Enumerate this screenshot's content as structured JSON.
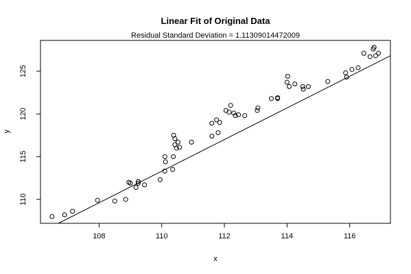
{
  "chart_data": {
    "type": "scatter",
    "title": "Linear Fit of Original Data",
    "subtitle": "Residual Standard Deviation =  1.11309014472009",
    "xlabel": "x",
    "ylabel": "y",
    "xlim": [
      106.13,
      117.3
    ],
    "ylim": [
      107.2,
      128.6
    ],
    "xticks": [
      "108",
      "110",
      "112",
      "114",
      "116"
    ],
    "yticks": [
      "110",
      "115",
      "120",
      "125"
    ],
    "fit_line": {
      "intercept": -90.2,
      "slope": 1.85
    },
    "points": [
      [
        106.5,
        108.0
      ],
      [
        106.9,
        108.2
      ],
      [
        107.15,
        108.6
      ],
      [
        107.95,
        109.9
      ],
      [
        108.5,
        109.8
      ],
      [
        108.85,
        110.0
      ],
      [
        108.95,
        112.0
      ],
      [
        109.0,
        111.9
      ],
      [
        109.18,
        111.4
      ],
      [
        109.25,
        112.1
      ],
      [
        109.25,
        111.9
      ],
      [
        109.45,
        111.7
      ],
      [
        109.95,
        112.3
      ],
      [
        110.1,
        113.3
      ],
      [
        110.1,
        115.0
      ],
      [
        110.12,
        114.4
      ],
      [
        110.35,
        113.5
      ],
      [
        110.37,
        115.0
      ],
      [
        110.38,
        117.5
      ],
      [
        110.42,
        116.4
      ],
      [
        110.42,
        117.1
      ],
      [
        110.47,
        116.0
      ],
      [
        110.52,
        116.7
      ],
      [
        110.57,
        116.1
      ],
      [
        110.95,
        116.7
      ],
      [
        111.6,
        117.4
      ],
      [
        111.6,
        118.9
      ],
      [
        111.75,
        119.3
      ],
      [
        111.8,
        117.8
      ],
      [
        111.85,
        119.0
      ],
      [
        112.05,
        120.4
      ],
      [
        112.15,
        120.2
      ],
      [
        112.2,
        121.0
      ],
      [
        112.3,
        120.1
      ],
      [
        112.35,
        119.8
      ],
      [
        112.45,
        119.9
      ],
      [
        112.65,
        119.8
      ],
      [
        113.05,
        120.4
      ],
      [
        113.07,
        120.7
      ],
      [
        113.5,
        121.8
      ],
      [
        113.7,
        121.9
      ],
      [
        113.7,
        121.8
      ],
      [
        114.0,
        123.7
      ],
      [
        114.02,
        124.4
      ],
      [
        114.07,
        123.2
      ],
      [
        114.25,
        123.5
      ],
      [
        114.5,
        123.2
      ],
      [
        114.52,
        122.9
      ],
      [
        114.68,
        123.2
      ],
      [
        115.3,
        123.8
      ],
      [
        115.87,
        124.8
      ],
      [
        115.9,
        124.3
      ],
      [
        116.07,
        125.2
      ],
      [
        116.27,
        125.4
      ],
      [
        116.45,
        127.1
      ],
      [
        116.65,
        126.7
      ],
      [
        116.75,
        127.6
      ],
      [
        116.78,
        127.8
      ],
      [
        116.83,
        126.8
      ],
      [
        116.92,
        127.1
      ]
    ]
  }
}
